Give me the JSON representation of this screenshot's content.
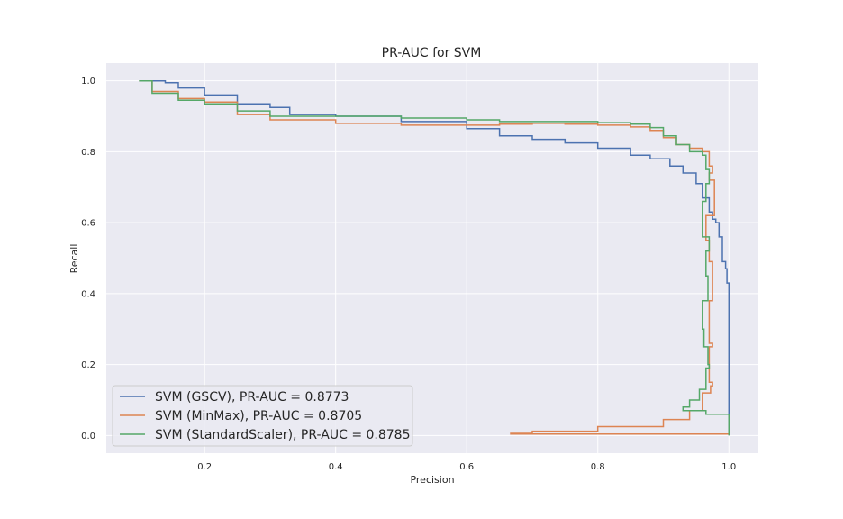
{
  "chart_data": {
    "type": "line",
    "title": "PR-AUC for SVM",
    "xlabel": "Precision",
    "ylabel": "Recall",
    "xlim": [
      0.05,
      1.045
    ],
    "ylim": [
      -0.05,
      1.05
    ],
    "xticks": [
      0.2,
      0.4,
      0.6,
      0.8,
      1.0
    ],
    "xtick_labels": [
      "0.2",
      "0.4",
      "0.6",
      "0.8",
      "1.0"
    ],
    "yticks": [
      0.0,
      0.2,
      0.4,
      0.6,
      0.8,
      1.0
    ],
    "ytick_labels": [
      "0.0",
      "0.2",
      "0.4",
      "0.6",
      "0.8",
      "1.0"
    ],
    "grid": true,
    "legend_position": "lower-left",
    "background_color": "#eaeaf2",
    "grid_color": "#ffffff",
    "series": [
      {
        "name": "SVM (GSCV), PR-AUC = 0.8773",
        "color": "#4c72b0",
        "x": [
          0.1,
          0.12,
          0.14,
          0.16,
          0.2,
          0.25,
          0.3,
          0.33,
          0.4,
          0.5,
          0.6,
          0.65,
          0.7,
          0.75,
          0.8,
          0.85,
          0.88,
          0.91,
          0.93,
          0.95,
          0.96,
          0.97,
          0.975,
          0.98,
          0.985,
          0.99,
          0.995,
          0.997,
          1.0,
          1.0
        ],
        "y": [
          1.0,
          1.0,
          0.995,
          0.98,
          0.96,
          0.935,
          0.925,
          0.905,
          0.9,
          0.885,
          0.865,
          0.845,
          0.835,
          0.825,
          0.81,
          0.79,
          0.78,
          0.76,
          0.74,
          0.71,
          0.67,
          0.63,
          0.61,
          0.6,
          0.56,
          0.49,
          0.47,
          0.43,
          0.43,
          0.0
        ]
      },
      {
        "name": "SVM (MinMax), PR-AUC = 0.8705",
        "color": "#dd8452",
        "x": [
          0.1,
          0.12,
          0.16,
          0.2,
          0.25,
          0.3,
          0.4,
          0.5,
          0.6,
          0.65,
          0.7,
          0.75,
          0.8,
          0.85,
          0.88,
          0.9,
          0.92,
          0.94,
          0.96,
          0.97,
          0.975,
          0.97,
          0.978,
          0.965,
          0.97,
          0.975,
          0.97,
          0.975,
          0.97,
          0.975,
          0.972,
          0.96,
          0.94,
          0.9,
          0.8,
          0.7,
          0.667,
          1.0
        ],
        "y": [
          1.0,
          0.97,
          0.95,
          0.94,
          0.905,
          0.89,
          0.88,
          0.875,
          0.875,
          0.878,
          0.88,
          0.878,
          0.875,
          0.87,
          0.86,
          0.84,
          0.82,
          0.81,
          0.8,
          0.76,
          0.74,
          0.72,
          0.62,
          0.55,
          0.49,
          0.38,
          0.26,
          0.25,
          0.15,
          0.14,
          0.12,
          0.07,
          0.045,
          0.025,
          0.012,
          0.006,
          0.004,
          0.004
        ]
      },
      {
        "name": "SVM (StandardScaler), PR-AUC = 0.8785",
        "color": "#55a868",
        "x": [
          0.1,
          0.12,
          0.16,
          0.2,
          0.25,
          0.3,
          0.4,
          0.5,
          0.6,
          0.65,
          0.7,
          0.75,
          0.8,
          0.85,
          0.88,
          0.9,
          0.92,
          0.94,
          0.96,
          0.965,
          0.97,
          0.965,
          0.96,
          0.97,
          0.965,
          0.968,
          0.96,
          0.962,
          0.968,
          0.97,
          0.965,
          0.955,
          0.94,
          0.93,
          0.965,
          1.0,
          1.0
        ],
        "y": [
          1.0,
          0.965,
          0.945,
          0.935,
          0.915,
          0.9,
          0.9,
          0.895,
          0.89,
          0.885,
          0.885,
          0.885,
          0.882,
          0.878,
          0.868,
          0.845,
          0.82,
          0.8,
          0.79,
          0.75,
          0.71,
          0.66,
          0.56,
          0.52,
          0.45,
          0.38,
          0.3,
          0.25,
          0.2,
          0.19,
          0.13,
          0.1,
          0.08,
          0.07,
          0.06,
          0.06,
          0.0
        ]
      }
    ]
  }
}
